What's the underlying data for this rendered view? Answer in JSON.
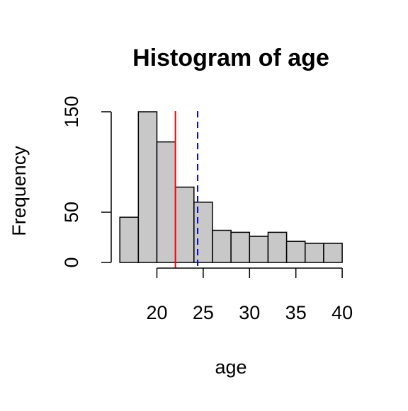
{
  "chart_data": {
    "type": "bar",
    "title": "Histogram of age",
    "xlabel": "age",
    "ylabel": "Frequency",
    "bins": [
      {
        "start": 16,
        "end": 18,
        "count": 45
      },
      {
        "start": 18,
        "end": 20,
        "count": 150
      },
      {
        "start": 20,
        "end": 22,
        "count": 120
      },
      {
        "start": 22,
        "end": 24,
        "count": 75
      },
      {
        "start": 24,
        "end": 26,
        "count": 60
      },
      {
        "start": 26,
        "end": 28,
        "count": 32
      },
      {
        "start": 28,
        "end": 30,
        "count": 30
      },
      {
        "start": 30,
        "end": 32,
        "count": 26
      },
      {
        "start": 32,
        "end": 34,
        "count": 30
      },
      {
        "start": 34,
        "end": 36,
        "count": 21
      },
      {
        "start": 36,
        "end": 38,
        "count": 19
      },
      {
        "start": 38,
        "end": 40,
        "count": 19
      }
    ],
    "x_ticks": [
      "20",
      "25",
      "30",
      "35",
      "40"
    ],
    "y_ticks": [
      "0",
      "50",
      "150"
    ],
    "x_axis_range": [
      20,
      40
    ],
    "y_axis_range": [
      0,
      150
    ],
    "reference_lines": [
      {
        "x": 22,
        "style": "solid",
        "color": "#ff0000"
      },
      {
        "x": 24.4,
        "style": "dashed",
        "color": "#0000ff"
      }
    ],
    "bar_fill": "#c8c8c8",
    "bar_stroke": "#000000",
    "grid": false
  }
}
